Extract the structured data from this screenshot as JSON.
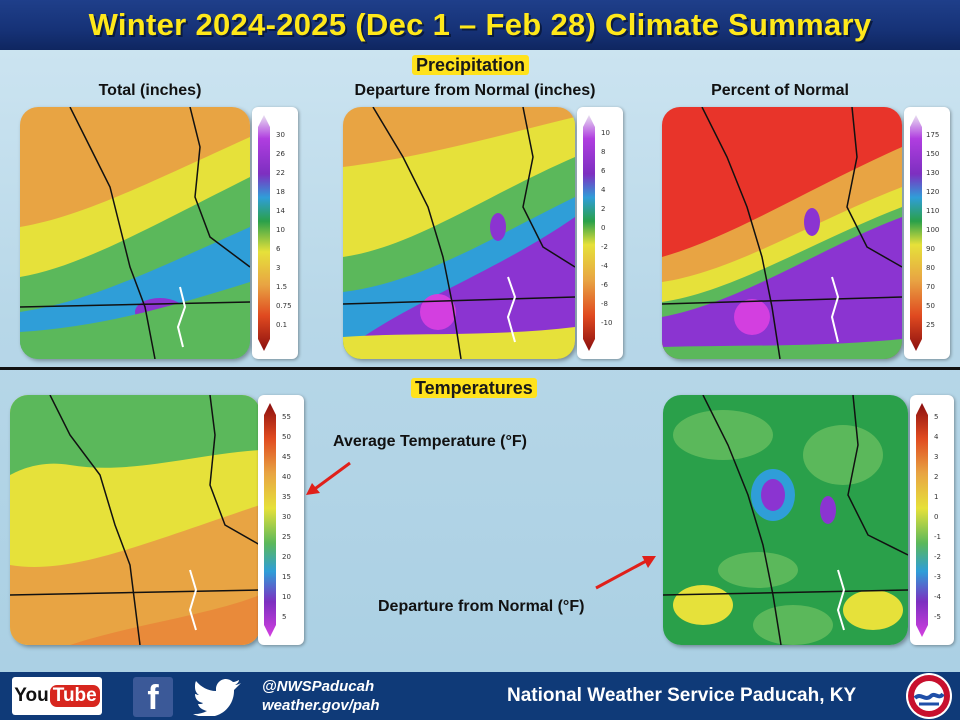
{
  "header": {
    "title": "Winter 2024-2025 (Dec 1 – Feb 28) Climate Summary"
  },
  "sections": {
    "precipitation": "Precipitation",
    "temperatures": "Temperatures"
  },
  "maps": {
    "precip_total": {
      "title": "Total (inches)",
      "legend": [
        "30",
        "26",
        "22",
        "18",
        "14",
        "10",
        "6",
        "3",
        "1.5",
        "0.75",
        "0.1"
      ]
    },
    "precip_departure": {
      "title": "Departure  from Normal (inches)",
      "legend": [
        "10",
        "8",
        "6",
        "4",
        "2",
        "0",
        "-2",
        "-4",
        "-6",
        "-8",
        "-10"
      ]
    },
    "precip_percent": {
      "title": "Percent of Normal",
      "legend": [
        "175",
        "150",
        "130",
        "120",
        "110",
        "100",
        "90",
        "80",
        "70",
        "50",
        "25"
      ]
    },
    "temp_average": {
      "legend": [
        "55",
        "50",
        "45",
        "40",
        "35",
        "30",
        "25",
        "20",
        "15",
        "10",
        "5"
      ]
    },
    "temp_departure": {
      "legend": [
        "5",
        "4",
        "3",
        "2",
        "1",
        "0",
        "-1",
        "-2",
        "-3",
        "-4",
        "-5"
      ]
    }
  },
  "annotations": {
    "avg_temp": "Average Temperature (°F)",
    "departure_temp": "Departure  from Normal (°F)"
  },
  "footer": {
    "youtube": "You",
    "youtube_tube": "Tube",
    "handle": "@NWSPaducah",
    "website": "weather.gov/pah",
    "org": "National Weather Service Paducah, KY"
  },
  "colors": {
    "title_text": "#ffe81a",
    "header_bg": "#1a3a85",
    "footer_bg": "#0f3a78",
    "section_label_bg": "#ffe21c"
  }
}
